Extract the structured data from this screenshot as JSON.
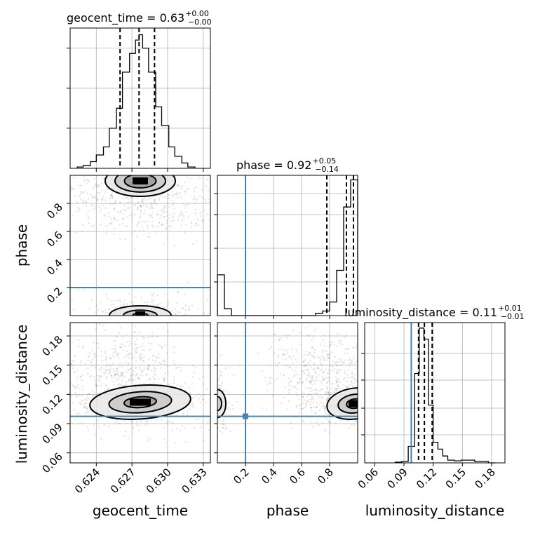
{
  "chart_data": {
    "type": "corner",
    "parameters": [
      "geocent_time",
      "phase",
      "luminosity_distance"
    ],
    "titles": {
      "geocent_time": {
        "label": "geocent_time",
        "median": "0.63",
        "plus": "+0.00",
        "minus": "−0.00"
      },
      "phase": {
        "label": "phase",
        "median": "0.92",
        "plus": "+0.05",
        "minus": "−0.14"
      },
      "luminosity_distance": {
        "label": "luminosity_distance",
        "median": "0.11",
        "plus": "+0.01",
        "minus": "−0.01"
      }
    },
    "axis_labels": [
      "geocent_time",
      "phase",
      "luminosity_distance"
    ],
    "ranges": {
      "geocent_time": [
        0.6218,
        0.6336
      ],
      "phase": [
        0.0,
        1.0
      ],
      "luminosity_distance": [
        0.0497,
        0.1937
      ]
    },
    "ticks": {
      "geocent_time": {
        "values": [
          0.624,
          0.627,
          0.63,
          0.633
        ],
        "labels": [
          "0.624",
          "0.627",
          "0.630",
          "0.633"
        ]
      },
      "phase_x": {
        "values": [
          0.2,
          0.4,
          0.6,
          0.8
        ],
        "labels": [
          "0.2",
          "0.4",
          "0.6",
          "0.8"
        ]
      },
      "phase_y": {
        "values": [
          0.2,
          0.4,
          0.6,
          0.8
        ],
        "labels": [
          "0.2",
          "0.4",
          "0.6",
          "0.8"
        ]
      },
      "luminosity_distance": {
        "values": [
          0.06,
          0.09,
          0.12,
          0.15,
          0.18
        ],
        "labels": [
          "0.06",
          "0.09",
          "0.12",
          "0.15",
          "0.18"
        ]
      }
    },
    "truth": {
      "phase": 0.2,
      "luminosity_distance": 0.0975
    },
    "quantiles": {
      "geocent_time": [
        0.626,
        0.6276,
        0.6289
      ],
      "phase": [
        0.78,
        0.92,
        0.97
      ],
      "luminosity_distance": [
        0.105,
        0.111,
        0.119
      ]
    },
    "histograms": {
      "geocent_time": {
        "edges": [
          0.6224,
          0.6229,
          0.6235,
          0.624,
          0.6246,
          0.6251,
          0.6257,
          0.6262,
          0.6268,
          0.6273,
          0.6276,
          0.6279,
          0.6284,
          0.629,
          0.6295,
          0.6301,
          0.6306,
          0.6312,
          0.6317,
          0.6323
        ],
        "counts": [
          0.01,
          0.02,
          0.05,
          0.1,
          0.16,
          0.3,
          0.45,
          0.72,
          0.86,
          0.96,
          1.0,
          0.9,
          0.72,
          0.46,
          0.32,
          0.16,
          0.09,
          0.04,
          0.01
        ],
        "ymax": 1.05
      },
      "phase": {
        "edges": [
          0.0,
          0.05,
          0.1,
          0.15,
          0.2,
          0.25,
          0.3,
          0.35,
          0.4,
          0.45,
          0.5,
          0.55,
          0.6,
          0.65,
          0.7,
          0.75,
          0.8,
          0.85,
          0.9,
          0.95,
          1.0
        ],
        "counts": [
          0.18,
          0.03,
          0.0,
          0.0,
          0.0,
          0.0,
          0.0,
          0.0,
          0.0,
          0.0,
          0.0,
          0.0,
          0.0,
          0.0,
          0.01,
          0.02,
          0.06,
          0.2,
          0.48,
          0.6
        ],
        "ymax": 0.62
      },
      "luminosity_distance": {
        "edges": [
          0.081,
          0.0877,
          0.0944,
          0.101,
          0.1057,
          0.1105,
          0.1152,
          0.12,
          0.1249,
          0.1298,
          0.135,
          0.1418,
          0.1486,
          0.1556,
          0.1626,
          0.1696,
          0.1766,
          0.1836
        ],
        "counts": [
          0.005,
          0.01,
          0.12,
          0.65,
          0.98,
          0.9,
          0.42,
          0.15,
          0.1,
          0.05,
          0.02,
          0.015,
          0.02,
          0.02,
          0.01,
          0.01,
          0.0
        ],
        "ymax": 1.02
      }
    },
    "density_2d": {
      "phase_vs_geocent_time": {
        "x_center": 0.6277,
        "y_centers": [
          0.96,
          0.03
        ],
        "level_sets": "contours at 1, 2 and 3 sigma"
      },
      "luminosity_distance_vs_geocent_time": {
        "x_center": 0.6277,
        "y_center": 0.112,
        "level_sets": "contours at 1, 2 and 3 sigma"
      },
      "luminosity_distance_vs_phase": {
        "x_center": 0.98,
        "y_center": 0.112,
        "secondary_x_center": 0.0,
        "level_sets": "contours at 1 and 2 sigma"
      }
    }
  }
}
